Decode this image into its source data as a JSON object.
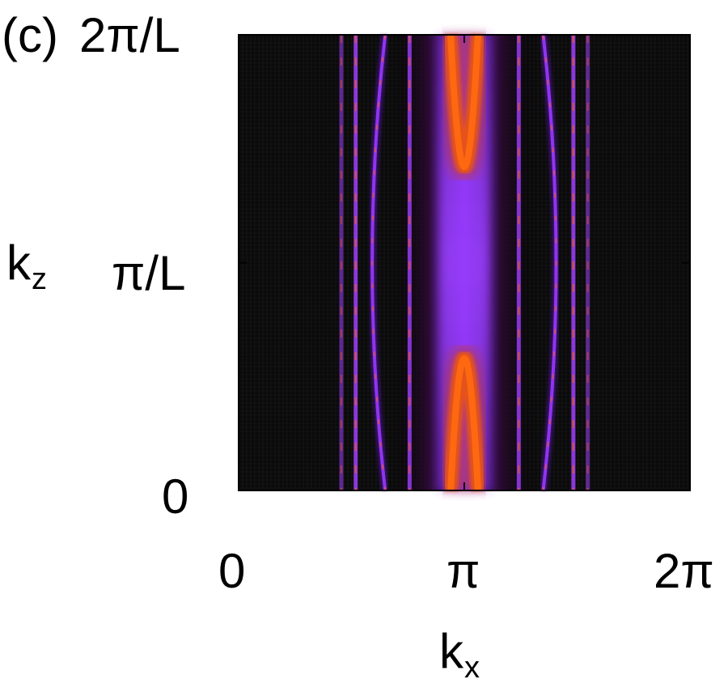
{
  "panel_label": "(c)",
  "chart_data": {
    "type": "heatmap",
    "xlabel": "k",
    "xlabel_sub": "x",
    "ylabel": "k",
    "ylabel_sub": "z",
    "xlim": [
      0,
      6.2832
    ],
    "ylim": [
      0,
      1
    ],
    "x_unit_note": "y values in units of 2π/L",
    "xticks": [
      {
        "value": 0,
        "label": "0"
      },
      {
        "value": 3.1416,
        "label": "π"
      },
      {
        "value": 6.2832,
        "label": "2π"
      }
    ],
    "yticks": [
      {
        "value": 0,
        "label": "0"
      },
      {
        "value": 0.5,
        "label": "π/L"
      },
      {
        "value": 1,
        "label": "2π/L"
      }
    ],
    "colormap": [
      "#000000",
      "#3a0a3a",
      "#6a12c8",
      "#9a30ff",
      "#d85020",
      "#ff5a00"
    ],
    "background_color": "#0a0a0a",
    "features": [
      {
        "kind": "line",
        "x": 1.43,
        "intensity": 0.55
      },
      {
        "kind": "line",
        "x": 1.63,
        "intensity": 0.85
      },
      {
        "kind": "line",
        "x": 2.38,
        "intensity": 0.8
      },
      {
        "kind": "line",
        "x": 3.9,
        "intensity": 0.8
      },
      {
        "kind": "line",
        "x": 4.66,
        "intensity": 0.85
      },
      {
        "kind": "line",
        "x": 4.86,
        "intensity": 0.55
      },
      {
        "kind": "curve",
        "x_at_edge": 2.04,
        "x_at_mid": 1.86,
        "intensity": 0.6
      },
      {
        "kind": "curve",
        "x_at_edge": 4.24,
        "x_at_mid": 4.42,
        "intensity": 0.6
      },
      {
        "kind": "arc",
        "center_x": 3.1416,
        "y_edge": 0,
        "half_width": 0.19,
        "depth": 0.29,
        "intensity": 1.0
      },
      {
        "kind": "arc",
        "center_x": 3.1416,
        "y_edge": 1,
        "half_width": 0.19,
        "depth": 0.29,
        "intensity": 1.0
      },
      {
        "kind": "band",
        "center_x": 3.1416,
        "half_width": 0.65,
        "intensity": 0.55
      }
    ]
  }
}
